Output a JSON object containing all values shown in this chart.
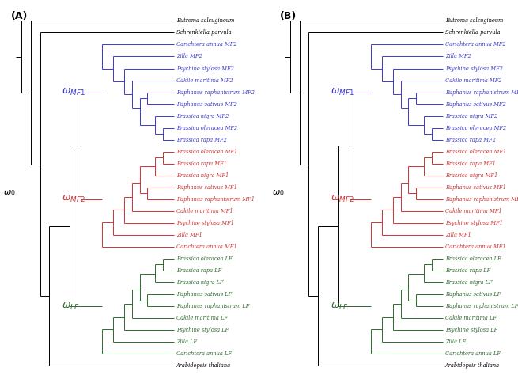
{
  "color_black": "#000000",
  "color_blue": "#3a3acc",
  "color_red": "#cc3333",
  "color_green": "#2d6a2d",
  "fontsize_taxa": 4.8,
  "fontsize_omega": 9,
  "fontsize_panel": 9,
  "lw": 0.7,
  "leaves_bottom_to_top": [
    [
      "Arabidopsis thaliana",
      "black"
    ],
    [
      "Carichtera annua LF",
      "green"
    ],
    [
      "Zilla LF",
      "green"
    ],
    [
      "Psychine stylosa LF",
      "green"
    ],
    [
      "Cakile maritima LF",
      "green"
    ],
    [
      "Raphanus raphanistrum LF",
      "green"
    ],
    [
      "Raphanus sativus LF",
      "green"
    ],
    [
      "Brassica nigra LF",
      "green"
    ],
    [
      "Brassica rapa LF",
      "green"
    ],
    [
      "Brassica oleracea LF",
      "green"
    ],
    [
      "Carichtera annua MF1",
      "red"
    ],
    [
      "Zilla MF1",
      "red"
    ],
    [
      "Psychine stylosa MF1",
      "red"
    ],
    [
      "Cakile maritima MF1",
      "red"
    ],
    [
      "Raphanus raphanistrum MF1",
      "red"
    ],
    [
      "Raphanus sativus MF1",
      "red"
    ],
    [
      "Brassica nigra MF1",
      "red"
    ],
    [
      "Brassica rapa MF1",
      "red"
    ],
    [
      "Brassica oleracea MF1",
      "red"
    ],
    [
      "Brassica rapa MF2",
      "blue"
    ],
    [
      "Brassica oleracea MF2",
      "blue"
    ],
    [
      "Brassica nigra MF2",
      "blue"
    ],
    [
      "Raphanus sativus MF2",
      "blue"
    ],
    [
      "Raphanus raphanistrum MF2",
      "blue"
    ],
    [
      "Cakile maritima MF2",
      "blue"
    ],
    [
      "Psychine stylosa MF2",
      "blue"
    ],
    [
      "Zilla MF2",
      "blue"
    ],
    [
      "Carichtera annua MF2",
      "blue"
    ],
    [
      "Schrenkiella parvula",
      "black"
    ],
    [
      "Eutrema salsugineum",
      "black"
    ]
  ]
}
